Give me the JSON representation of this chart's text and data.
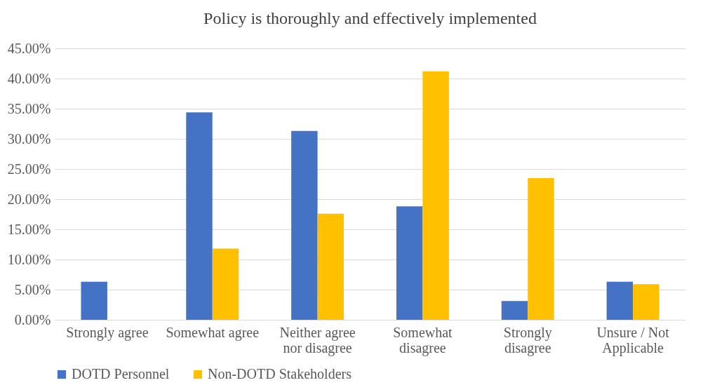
{
  "chart_data": {
    "type": "bar",
    "title": "Policy is thoroughly and effectively implemented",
    "categories": [
      "Strongly agree",
      "Somewhat agree",
      "Neither agree nor disagree",
      "Somewhat disagree",
      "Strongly disagree",
      "Unsure / Not Applicable"
    ],
    "series": [
      {
        "name": "DOTD Personnel",
        "color": "#4472c4",
        "values": [
          6.3,
          34.4,
          31.3,
          18.8,
          3.1,
          6.3
        ]
      },
      {
        "name": "Non-DOTD Stakeholders",
        "color": "#ffc000",
        "values": [
          0,
          11.8,
          17.6,
          41.2,
          23.5,
          5.9
        ]
      }
    ],
    "ylim": [
      0,
      45
    ],
    "yticks": [
      {
        "value": 0,
        "label": "0.00%"
      },
      {
        "value": 5,
        "label": "5.00%"
      },
      {
        "value": 10,
        "label": "10.00%"
      },
      {
        "value": 15,
        "label": "15.00%"
      },
      {
        "value": 20,
        "label": "20.00%"
      },
      {
        "value": 25,
        "label": "25.00%"
      },
      {
        "value": 30,
        "label": "30.00%"
      },
      {
        "value": 35,
        "label": "35.00%"
      },
      {
        "value": 40,
        "label": "40.00%"
      },
      {
        "value": 45,
        "label": "45.00%"
      }
    ],
    "grid": "y",
    "legend": "bottom"
  }
}
